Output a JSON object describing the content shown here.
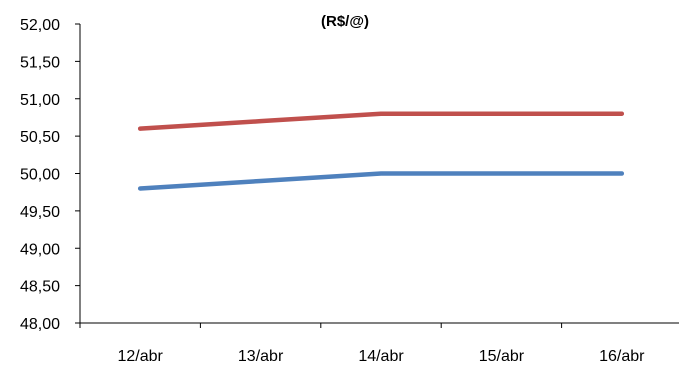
{
  "chart_data": {
    "type": "line",
    "title": "(R$/@)",
    "xlabel": "",
    "ylabel": "",
    "categories": [
      "12/abr",
      "13/abr",
      "14/abr",
      "15/abr",
      "16/abr"
    ],
    "ylim": [
      48.0,
      52.0
    ],
    "yticks": [
      48.0,
      48.5,
      49.0,
      49.5,
      50.0,
      50.5,
      51.0,
      51.5,
      52.0
    ],
    "ytick_labels": [
      "48,00",
      "48,50",
      "49,00",
      "49,50",
      "50,00",
      "50,50",
      "51,00",
      "51,50",
      "52,00"
    ],
    "grid": false,
    "legend": "none",
    "series": [
      {
        "color": "#C0504D",
        "values": [
          50.6,
          50.7,
          50.8,
          50.8,
          50.8
        ]
      },
      {
        "color": "#4F81BD",
        "values": [
          49.8,
          49.9,
          50.0,
          50.0,
          50.0
        ]
      }
    ]
  }
}
